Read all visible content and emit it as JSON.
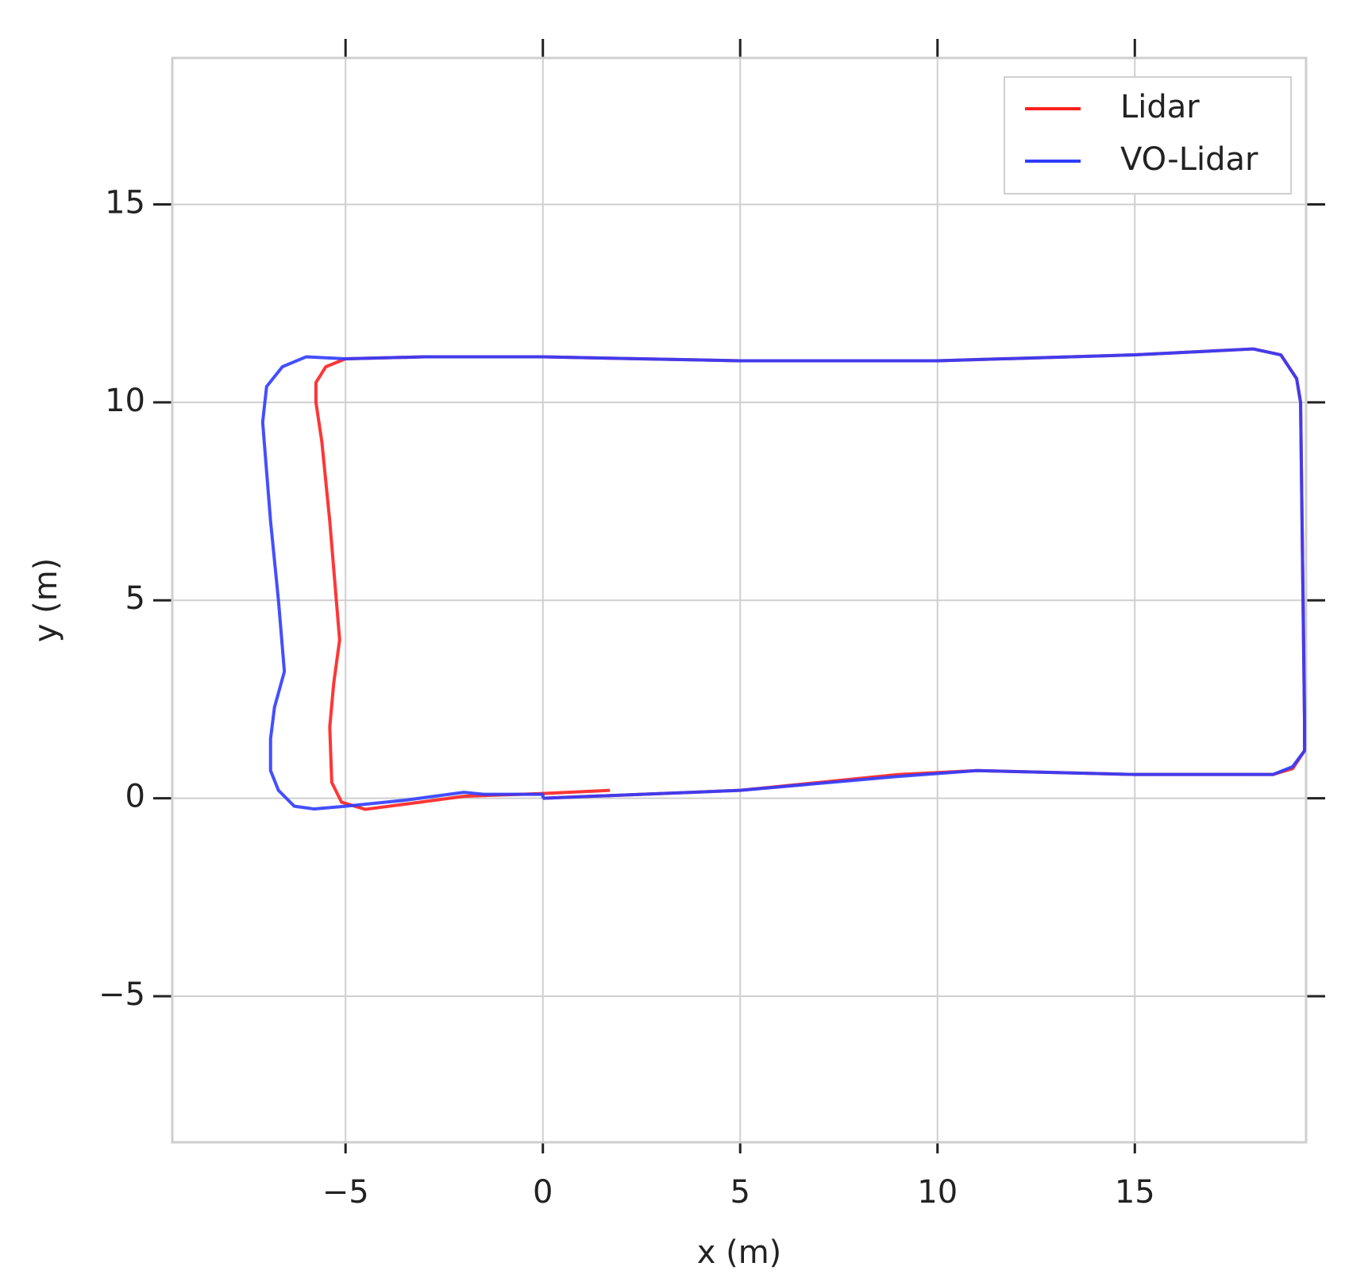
{
  "chart_data": {
    "type": "line",
    "xlabel": "x (m)",
    "ylabel": "y (m)",
    "xlim": [
      -9.39,
      19.34
    ],
    "ylim": [
      -8.69,
      18.7
    ],
    "xticks": [
      {
        "value": -5,
        "label": "−5"
      },
      0,
      5,
      10,
      15
    ],
    "yticks": [
      {
        "value": -5,
        "label": "−5"
      },
      0,
      5,
      10,
      15
    ],
    "grid": true,
    "legend": "upper right",
    "series": [
      {
        "name": "Lidar",
        "color": "#ff2020",
        "x": [
          1.7,
          0,
          -2,
          -3.5,
          -4.5,
          -5.1,
          -5.35,
          -5.4,
          -5.3,
          -5.15,
          -5.4,
          -5.6,
          -5.75,
          -5.75,
          -5.5,
          -5,
          -3,
          0,
          5,
          10,
          15,
          18,
          18.7,
          19.1,
          19.2,
          19.3,
          19.3,
          19,
          18.5,
          15,
          11,
          9,
          5,
          0
        ],
        "values": [
          0.2,
          0.12,
          0.05,
          -0.15,
          -0.28,
          -0.1,
          0.4,
          1.8,
          2.9,
          4,
          7,
          9,
          10,
          10.5,
          10.9,
          11.1,
          11.15,
          11.15,
          11.05,
          11.05,
          11.2,
          11.35,
          11.2,
          10.6,
          10,
          2,
          1.2,
          0.75,
          0.6,
          0.6,
          0.7,
          0.6,
          0.2,
          0
        ]
      },
      {
        "name": "VO-Lidar",
        "color": "#2f3cff",
        "x": [
          0,
          5,
          9,
          11,
          15,
          18.5,
          19,
          19.3,
          19.3,
          19.2,
          19.1,
          18.7,
          18,
          15,
          10,
          5,
          0,
          -3,
          -5,
          -6,
          -6.6,
          -7,
          -7.1,
          -6.9,
          -6.7,
          -6.55,
          -6.8,
          -6.9,
          -6.9,
          -6.7,
          -6.3,
          -5.8,
          -5,
          -3.5,
          -2,
          -1.5,
          0,
          0
        ],
        "values": [
          0,
          0.2,
          0.55,
          0.7,
          0.6,
          0.6,
          0.8,
          1.2,
          2,
          10,
          10.6,
          11.2,
          11.35,
          11.2,
          11.05,
          11.05,
          11.15,
          11.15,
          11.1,
          11.15,
          10.9,
          10.4,
          9.5,
          7,
          5,
          3.2,
          2.3,
          1.5,
          0.7,
          0.2,
          -0.2,
          -0.27,
          -0.2,
          -0.05,
          0.15,
          0.1,
          0.1,
          0
        ]
      }
    ]
  }
}
